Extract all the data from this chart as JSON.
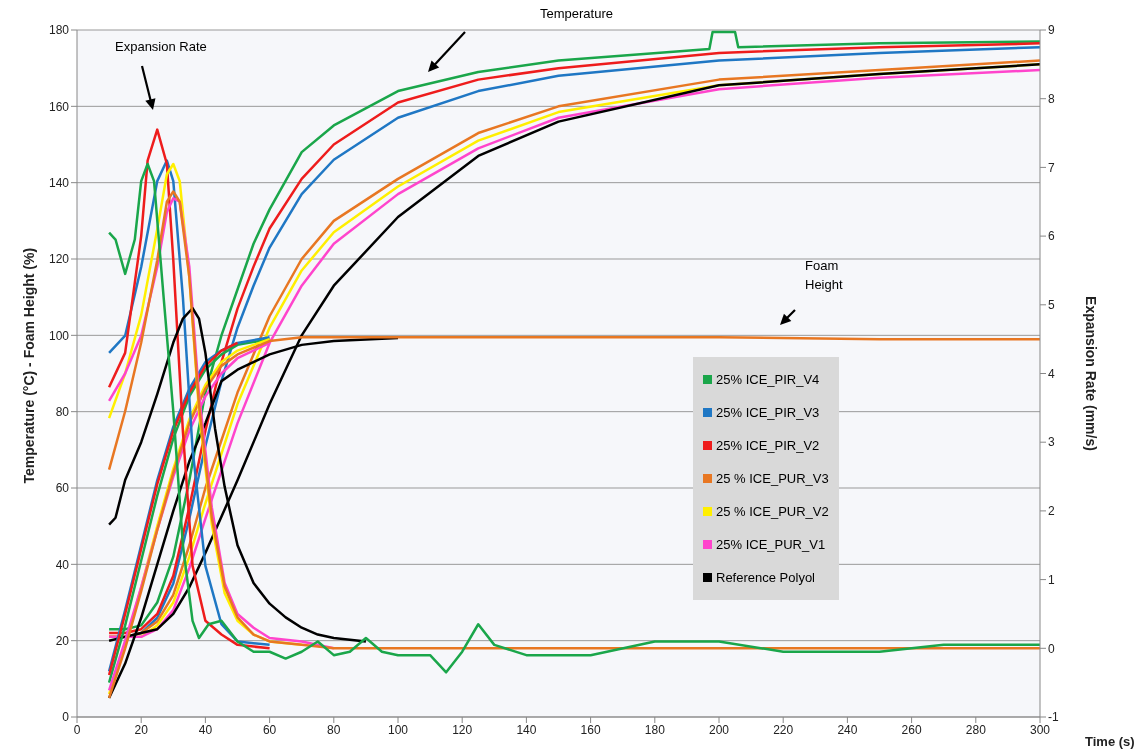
{
  "chart_data": {
    "type": "line",
    "xlabel": "Time (s)",
    "ylabel": "Temperature (°C) - Foam Height (%)",
    "y2label": "Expansion Rate (mm/s)",
    "xlim": [
      0,
      300
    ],
    "xticks": [
      0,
      20,
      40,
      60,
      80,
      100,
      120,
      140,
      160,
      180,
      200,
      220,
      240,
      260,
      280,
      300
    ],
    "ylim": [
      0,
      180
    ],
    "yticks": [
      0,
      20,
      40,
      60,
      80,
      100,
      120,
      140,
      160,
      180
    ],
    "y2lim": [
      -1,
      9
    ],
    "y2ticks": [
      -1,
      0,
      1,
      2,
      3,
      4,
      5,
      6,
      7,
      8,
      9
    ],
    "grid": "y",
    "legend": "right",
    "annotations": [
      "Temperature",
      "Expansion Rate",
      "Foam Height"
    ],
    "series": [
      {
        "name": "25% ICE_PIR_V4",
        "color": "#1aa64a",
        "x": [
          10,
          15,
          20,
          25,
          30,
          35,
          40,
          45,
          50,
          55,
          60,
          70,
          80,
          100,
          125,
          150,
          197,
          198,
          205,
          206,
          250,
          300
        ],
        "values": [
          23,
          23,
          24,
          30,
          42,
          62,
          85,
          100,
          112,
          124,
          133,
          148,
          155,
          164,
          169,
          172,
          175,
          179.5,
          179.5,
          175.5,
          176.5,
          177
        ]
      },
      {
        "name": "25% ICE_PIR_V3",
        "color": "#1f77c4",
        "x": [
          10,
          15,
          20,
          25,
          30,
          35,
          40,
          45,
          50,
          55,
          60,
          70,
          80,
          100,
          125,
          150,
          200,
          250,
          300
        ],
        "values": [
          21,
          21,
          22,
          26,
          35,
          52,
          71,
          88,
          102,
          113,
          123,
          137,
          146,
          157,
          164,
          168,
          172,
          174,
          175.5
        ]
      },
      {
        "name": "25% ICE_PIR_V2",
        "color": "#ee1c1c",
        "x": [
          10,
          15,
          20,
          25,
          30,
          35,
          40,
          45,
          50,
          55,
          60,
          70,
          80,
          100,
          125,
          150,
          200,
          250,
          300
        ],
        "values": [
          22,
          22,
          23,
          27,
          37,
          55,
          75,
          93,
          107,
          118,
          128,
          141,
          150,
          161,
          167,
          170,
          174,
          175.5,
          176.5
        ]
      },
      {
        "name": "25 % ICE_PUR_V3",
        "color": "#e87722",
        "x": [
          10,
          15,
          20,
          25,
          30,
          35,
          40,
          50,
          60,
          70,
          80,
          100,
          125,
          150,
          200,
          250,
          300
        ],
        "values": [
          21,
          21,
          22,
          25,
          32,
          45,
          60,
          85,
          105,
          120,
          130,
          141,
          153,
          160,
          167,
          169.5,
          172
        ]
      },
      {
        "name": "25 % ICE_PUR_V2",
        "color": "#ffef00",
        "x": [
          10,
          15,
          20,
          25,
          30,
          35,
          40,
          50,
          60,
          70,
          80,
          100,
          125,
          150,
          200,
          250,
          300
        ],
        "values": [
          21,
          21,
          21,
          24,
          30,
          42,
          56,
          82,
          102,
          117,
          127,
          139,
          151,
          158.5,
          165.5,
          168.5,
          171
        ]
      },
      {
        "name": "25% ICE_PUR_V1",
        "color": "#ff44cc",
        "x": [
          10,
          15,
          20,
          25,
          30,
          35,
          40,
          50,
          60,
          70,
          80,
          100,
          125,
          150,
          200,
          250,
          300
        ],
        "values": [
          21,
          21,
          21,
          23,
          28,
          39,
          52,
          77,
          98,
          113,
          124,
          137,
          149,
          157,
          164.5,
          167.5,
          169.5
        ]
      },
      {
        "name": "Reference Polyol",
        "color": "#000000",
        "x": [
          10,
          15,
          20,
          25,
          30,
          35,
          40,
          50,
          60,
          70,
          80,
          100,
          125,
          150,
          200,
          250,
          300
        ],
        "values": [
          20,
          21,
          22,
          23,
          27,
          34,
          43,
          62,
          82,
          100,
          113,
          131,
          147,
          156,
          165.5,
          168.5,
          171
        ]
      },
      {
        "color": "#1aa64a",
        "x": [
          10,
          15,
          20,
          25,
          30,
          35,
          40,
          45,
          50,
          60
        ],
        "values": [
          9,
          24,
          41,
          58,
          73,
          84,
          91,
          95,
          97.5,
          99
        ]
      },
      {
        "color": "#1f77c4",
        "x": [
          10,
          15,
          20,
          25,
          30,
          35,
          40,
          45,
          50,
          60
        ],
        "values": [
          12,
          28,
          45,
          62,
          76,
          86,
          93,
          96,
          98,
          99.5
        ]
      },
      {
        "color": "#ee1c1c",
        "x": [
          10,
          15,
          20,
          25,
          30,
          35,
          40,
          45,
          50
        ],
        "values": [
          11,
          27,
          44,
          61,
          75,
          85,
          92,
          96,
          98
        ]
      },
      {
        "color": "#ffef00",
        "x": [
          10,
          15,
          20,
          25,
          30,
          35,
          40,
          45,
          50,
          60
        ],
        "values": [
          6,
          19,
          34,
          50,
          65,
          78,
          87,
          93,
          96,
          99
        ]
      },
      {
        "color": "#ff44cc",
        "x": [
          10,
          15,
          20,
          25,
          30,
          35,
          40,
          45,
          50,
          60
        ],
        "values": [
          7,
          20,
          34,
          49,
          63,
          75,
          84,
          90,
          94,
          98
        ]
      },
      {
        "color": "#000000",
        "x": [
          10,
          15,
          20,
          25,
          30,
          35,
          40,
          45,
          50,
          60,
          70,
          80,
          100
        ],
        "values": [
          5,
          14,
          26,
          40,
          54,
          67,
          77,
          88,
          91,
          95,
          97.5,
          98.5,
          99.3
        ]
      },
      {
        "color": "#e87722",
        "x": [
          10,
          15,
          20,
          25,
          30,
          35,
          40,
          45,
          50,
          60,
          70,
          80,
          100,
          150,
          200,
          250,
          300
        ],
        "values": [
          5,
          18,
          33,
          49,
          64,
          77,
          86,
          92,
          95,
          98.5,
          99.5,
          99.5,
          99.5,
          99.5,
          99.5,
          99,
          99
        ]
      },
      {
        "color": "#1f77c4",
        "axis": "y2",
        "x": [
          10,
          15,
          20,
          25,
          28,
          30,
          33,
          36,
          40,
          45,
          50,
          60
        ],
        "values": [
          4.3,
          4.55,
          5.55,
          6.8,
          7.1,
          6.8,
          5.1,
          2.9,
          1.2,
          0.35,
          0.1,
          0.05
        ]
      },
      {
        "color": "#ee1c1c",
        "axis": "y2",
        "x": [
          10,
          15,
          20,
          22,
          25,
          28,
          30,
          33,
          36,
          40,
          45,
          50,
          60
        ],
        "values": [
          3.8,
          4.3,
          6.0,
          7.1,
          7.55,
          7.05,
          5.65,
          3.15,
          1.2,
          0.4,
          0.2,
          0.05,
          0
        ]
      },
      {
        "color": "#ffef00",
        "axis": "y2",
        "x": [
          10,
          15,
          20,
          25,
          28,
          30,
          32,
          35,
          38,
          42,
          46,
          50,
          55,
          60,
          70
        ],
        "values": [
          3.35,
          4,
          4.85,
          6.1,
          6.9,
          7.05,
          6.8,
          5.4,
          3.45,
          1.8,
          0.8,
          0.4,
          0.2,
          0.1,
          0.05
        ]
      },
      {
        "color": "#ff44cc",
        "axis": "y2",
        "x": [
          10,
          15,
          20,
          25,
          28,
          30,
          32,
          35,
          38,
          42,
          46,
          50,
          55,
          60,
          70,
          80
        ],
        "values": [
          3.6,
          4,
          4.55,
          5.55,
          6.35,
          6.55,
          6.5,
          5.55,
          3.7,
          2.05,
          0.95,
          0.5,
          0.3,
          0.15,
          0.1,
          0
        ]
      },
      {
        "color": "#000000",
        "axis": "y2",
        "x": [
          10,
          12,
          15,
          20,
          25,
          30,
          33,
          36,
          38,
          40,
          43,
          46,
          50,
          55,
          60,
          65,
          70,
          75,
          80,
          90
        ],
        "values": [
          1.8,
          1.9,
          2.45,
          3,
          3.7,
          4.45,
          4.8,
          4.95,
          4.8,
          4.3,
          3.2,
          2.35,
          1.5,
          0.95,
          0.65,
          0.45,
          0.3,
          0.2,
          0.15,
          0.1
        ]
      },
      {
        "color": "#e87722",
        "axis": "y2",
        "x": [
          10,
          15,
          20,
          25,
          28,
          30,
          32,
          35,
          38,
          42,
          46,
          50,
          55,
          60,
          70,
          80,
          100,
          150,
          200,
          250,
          300
        ],
        "values": [
          2.6,
          3.45,
          4.45,
          5.65,
          6.5,
          6.65,
          6.5,
          5.4,
          3.55,
          1.9,
          0.9,
          0.45,
          0.2,
          0.1,
          0.05,
          0,
          0,
          0,
          0,
          0,
          0
        ]
      },
      {
        "color": "#1aa64a",
        "axis": "y2",
        "x": [
          10,
          12,
          15,
          18,
          20,
          22,
          24,
          27,
          30,
          33,
          36,
          38,
          41,
          45,
          50,
          55,
          60,
          65,
          70,
          75,
          80,
          85,
          90,
          95,
          100,
          110,
          115,
          120,
          125,
          130,
          140,
          160,
          180,
          200,
          220,
          250,
          270,
          300
        ],
        "values": [
          6.05,
          5.95,
          5.45,
          5.95,
          6.8,
          7.05,
          6.8,
          5.1,
          3.45,
          1.5,
          0.4,
          0.15,
          0.35,
          0.4,
          0.1,
          -0.05,
          -0.05,
          -0.15,
          -0.05,
          0.1,
          -0.1,
          -0.05,
          0.15,
          -0.05,
          -0.1,
          -0.1,
          -0.35,
          -0.05,
          0.35,
          0.05,
          -0.1,
          -0.1,
          0.1,
          0.1,
          -0.05,
          -0.05,
          0.05,
          0.05
        ]
      }
    ]
  }
}
